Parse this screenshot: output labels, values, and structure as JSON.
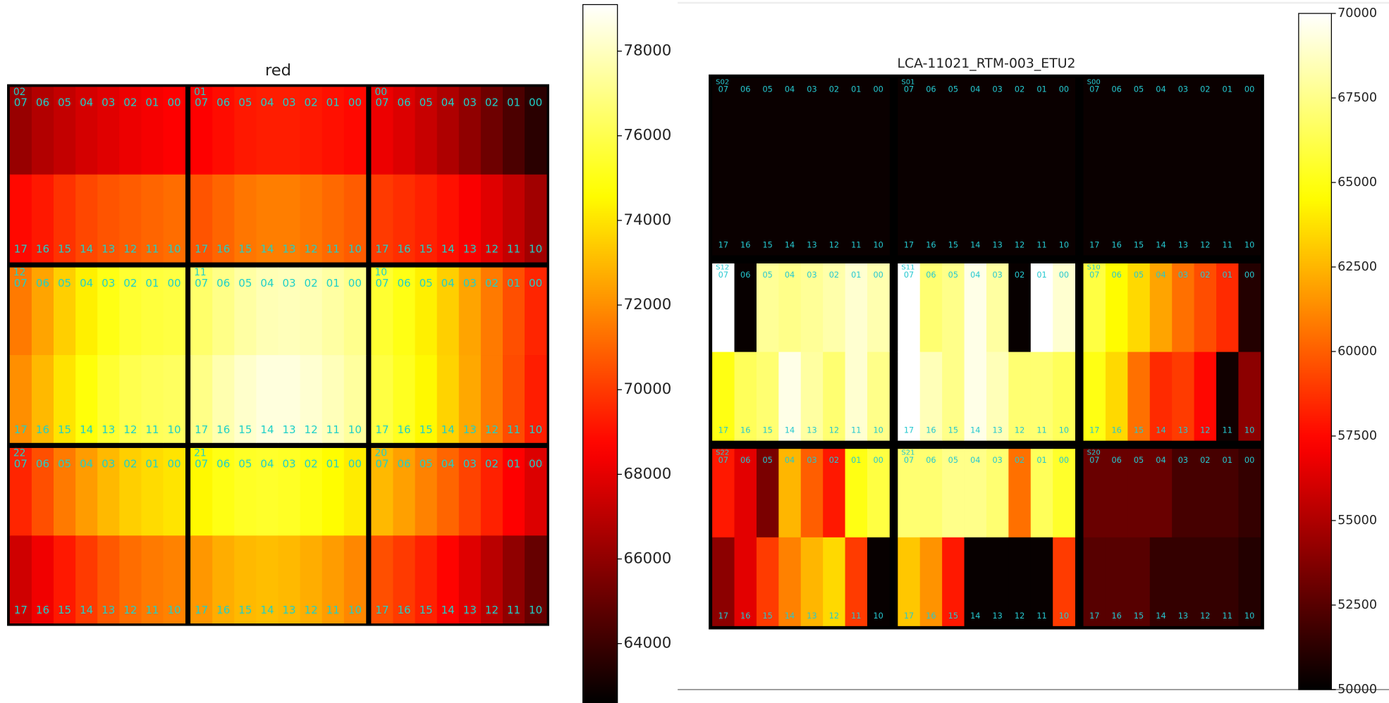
{
  "chart_data": [
    {
      "type": "heatmap",
      "title": "red",
      "colormap": "hot",
      "colorbar_lim": [
        62600,
        79100
      ],
      "colorbar_ticks": [
        64000,
        66000,
        68000,
        70000,
        72000,
        74000,
        76000,
        78000
      ],
      "top_labels": [
        "07",
        "06",
        "05",
        "04",
        "03",
        "02",
        "01",
        "00"
      ],
      "bottom_labels": [
        "17",
        "16",
        "15",
        "14",
        "13",
        "12",
        "11",
        "10"
      ],
      "ccds": [
        {
          "label": "02",
          "values": [
            [
              66200,
              66800,
              67200,
              67600,
              67900,
              68200,
              68400,
              68600
            ],
            [
              68800,
              69200,
              69800,
              70300,
              70600,
              70800,
              71000,
              71200
            ]
          ]
        },
        {
          "label": "01",
          "values": [
            [
              68600,
              68900,
              69200,
              69300,
              69300,
              69200,
              69000,
              68800
            ],
            [
              70600,
              71000,
              71400,
              71600,
              71600,
              71400,
              71100,
              70800
            ]
          ]
        },
        {
          "label": "00",
          "values": [
            [
              68200,
              67800,
              67300,
              66700,
              66000,
              65200,
              64400,
              63600
            ],
            [
              70000,
              69700,
              69400,
              69000,
              68500,
              67900,
              67200,
              66400
            ]
          ]
        },
        {
          "label": "12",
          "values": [
            [
              71500,
              72500,
              73500,
              74300,
              75000,
              75500,
              75700,
              75800
            ],
            [
              72000,
              73000,
              74000,
              74800,
              75500,
              76000,
              76200,
              76300
            ]
          ]
        },
        {
          "label": "11",
          "values": [
            [
              76500,
              77000,
              77500,
              77800,
              77900,
              77800,
              77500,
              77100
            ],
            [
              77000,
              77700,
              78200,
              78500,
              78500,
              78300,
              77900,
              77400
            ]
          ]
        },
        {
          "label": "10",
          "values": [
            [
              75500,
              75000,
              74300,
              73500,
              72500,
              71500,
              70500,
              69500
            ],
            [
              75800,
              75200,
              74500,
              73600,
              72600,
              71500,
              70400,
              69300
            ]
          ]
        },
        {
          "label": "22",
          "values": [
            [
              69500,
              70500,
              71500,
              72300,
              73000,
              73500,
              73800,
              74000
            ],
            [
              67500,
              68300,
              69200,
              70000,
              70700,
              71200,
              71500,
              71700
            ]
          ]
        },
        {
          "label": "21",
          "values": [
            [
              74500,
              75000,
              75300,
              75400,
              75300,
              75000,
              74600,
              74200
            ],
            [
              72200,
              72700,
              73000,
              73100,
              73000,
              72700,
              72300,
              71800
            ]
          ]
        },
        {
          "label": "20",
          "values": [
            [
              73000,
              72400,
              71700,
              71000,
              70200,
              69400,
              68600,
              67800
            ],
            [
              70500,
              70000,
              69400,
              68700,
              67900,
              67000,
              66000,
              65000
            ]
          ]
        }
      ]
    },
    {
      "type": "heatmap",
      "title": "LCA-11021_RTM-003_ETU2",
      "colormap": "hot",
      "colorbar_lim": [
        50000,
        70000
      ],
      "colorbar_ticks": [
        50000,
        52500,
        55000,
        57500,
        60000,
        62500,
        65000,
        67500,
        70000
      ],
      "top_labels": [
        "07",
        "06",
        "05",
        "04",
        "03",
        "02",
        "01",
        "00"
      ],
      "bottom_labels": [
        "17",
        "16",
        "15",
        "14",
        "13",
        "12",
        "11",
        "10"
      ],
      "ccds": [
        {
          "label": "S02",
          "values": [
            [
              50300,
              50300,
              50300,
              50300,
              50300,
              50300,
              50300,
              50300
            ],
            [
              50300,
              50300,
              50300,
              50300,
              50300,
              50300,
              50300,
              50300
            ]
          ]
        },
        {
          "label": "S01",
          "values": [
            [
              50300,
              50300,
              50300,
              50300,
              50300,
              50300,
              50300,
              50300
            ],
            [
              50300,
              50300,
              50300,
              50300,
              50300,
              50300,
              50300,
              50300
            ]
          ]
        },
        {
          "label": "S00",
          "values": [
            [
              50300,
              50300,
              50300,
              50300,
              50300,
              50300,
              50300,
              50300
            ],
            [
              50300,
              50300,
              50300,
              50300,
              50300,
              50300,
              50300,
              50300
            ]
          ]
        },
        {
          "label": "S12",
          "values": [
            [
              70000,
              50200,
              67800,
              67500,
              67800,
              68200,
              69000,
              68300
            ],
            [
              65000,
              66500,
              67000,
              69500,
              68000,
              67000,
              69000,
              67500
            ]
          ]
        },
        {
          "label": "S11",
          "values": [
            [
              70000,
              67000,
              67500,
              69500,
              68000,
              50200,
              70000,
              69000
            ],
            [
              70000,
              68500,
              67500,
              69500,
              68500,
              67000,
              67000,
              66500
            ]
          ]
        },
        {
          "label": "S10",
          "values": [
            [
              66000,
              64500,
              63500,
              62000,
              60500,
              59500,
              58500,
              51000
            ],
            [
              65000,
              63500,
              60500,
              58500,
              59000,
              57500,
              50500,
              54000
            ]
          ]
        },
        {
          "label": "S22",
          "values": [
            [
              58000,
              56500,
              53500,
              62500,
              60000,
              58000,
              65000,
              66000
            ],
            [
              54000,
              56500,
              59000,
              61000,
              62500,
              63500,
              59000,
              50200
            ]
          ]
        },
        {
          "label": "S21",
          "values": [
            [
              67000,
              67000,
              67500,
              67500,
              67000,
              60500,
              66500,
              65500
            ],
            [
              63000,
              61500,
              58000,
              50200,
              50200,
              50200,
              50200,
              59000
            ]
          ]
        },
        {
          "label": "S20",
          "values": [
            [
              53000,
              53000,
              53000,
              53000,
              52000,
              52000,
              52000,
              51500
            ],
            [
              52500,
              52500,
              52500,
              51500,
              51500,
              51500,
              51500,
              51000
            ]
          ]
        }
      ]
    }
  ]
}
